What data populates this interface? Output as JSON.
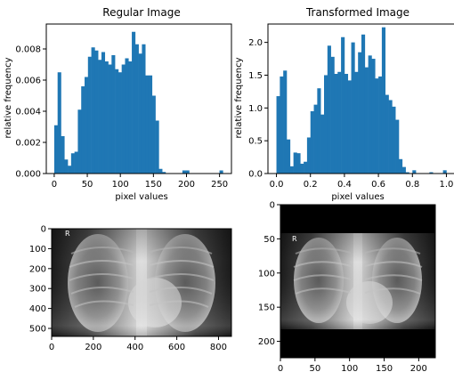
{
  "chart_data": [
    {
      "type": "bar",
      "title": "Regular Image",
      "xlabel": "pixel values",
      "ylabel": "relative frequency",
      "xlim": [
        -12,
        268
      ],
      "ylim": [
        0,
        0.0096
      ],
      "xticks": [
        0,
        50,
        100,
        150,
        200,
        250
      ],
      "yticks": [
        0.0,
        0.002,
        0.004,
        0.006,
        0.008
      ],
      "ytick_labels": [
        "0.000",
        "0.002",
        "0.004",
        "0.006",
        "0.008"
      ],
      "bin_start": 0,
      "bin_width": 5.1,
      "values": [
        0.0031,
        0.0065,
        0.0024,
        0.0009,
        0.0005,
        0.0013,
        0.0014,
        0.0041,
        0.0056,
        0.0062,
        0.0075,
        0.0081,
        0.0079,
        0.0073,
        0.0078,
        0.0072,
        0.007,
        0.0076,
        0.0067,
        0.0065,
        0.007,
        0.0074,
        0.0072,
        0.0091,
        0.0083,
        0.0077,
        0.0083,
        0.0063,
        0.0063,
        0.005,
        0.0034,
        0.0003,
        0.0001,
        0.0,
        0.0,
        0.0,
        0.0,
        0.0,
        0.0002,
        0.0002,
        0.0,
        0.0,
        0.0,
        0.0,
        0.0,
        0.0,
        0.0,
        0.0,
        0.0,
        0.0002
      ],
      "color": "#1f77b4"
    },
    {
      "type": "bar",
      "title": "Transformed Image",
      "xlabel": "pixel values",
      "ylabel": "relative frequency",
      "xlim": [
        -0.05,
        1.05
      ],
      "ylim": [
        0,
        2.28
      ],
      "xticks": [
        0.0,
        0.2,
        0.4,
        0.6,
        0.8,
        1.0
      ],
      "xtick_labels": [
        "0.0",
        "0.2",
        "0.4",
        "0.6",
        "0.8",
        "1.0"
      ],
      "yticks": [
        0.0,
        0.5,
        1.0,
        1.5,
        2.0
      ],
      "ytick_labels": [
        "0.0",
        "0.5",
        "1.0",
        "1.5",
        "2.0"
      ],
      "bin_start": 0,
      "bin_width": 0.02,
      "values": [
        1.18,
        1.48,
        1.57,
        0.52,
        0.11,
        0.32,
        0.31,
        0.15,
        0.18,
        0.55,
        0.95,
        1.05,
        1.3,
        0.9,
        1.5,
        1.95,
        1.78,
        1.52,
        1.55,
        2.08,
        1.52,
        1.42,
        2.0,
        1.55,
        1.85,
        2.12,
        1.62,
        1.8,
        1.75,
        1.45,
        1.48,
        2.23,
        1.2,
        1.12,
        1.02,
        0.82,
        0.22,
        0.1,
        0.02,
        0.0,
        0.05,
        0.0,
        0.0,
        0.0,
        0.0,
        0.02,
        0.0,
        0.0,
        0.0,
        0.05
      ],
      "color": "#1f77b4"
    },
    {
      "type": "image",
      "alt": "chest x-ray",
      "xlim": [
        0,
        862
      ],
      "ylim": [
        540,
        0
      ],
      "xticks": [
        0,
        200,
        400,
        600,
        800
      ],
      "yticks": [
        0,
        100,
        200,
        300,
        400,
        500
      ],
      "marker": "R"
    },
    {
      "type": "image",
      "alt": "transformed chest x-ray",
      "xlim": [
        0,
        224
      ],
      "ylim": [
        224,
        0
      ],
      "xticks": [
        0,
        50,
        100,
        150,
        200
      ],
      "yticks": [
        0,
        50,
        100,
        150,
        200
      ],
      "image_band": [
        42,
        182
      ],
      "marker": "R"
    }
  ]
}
